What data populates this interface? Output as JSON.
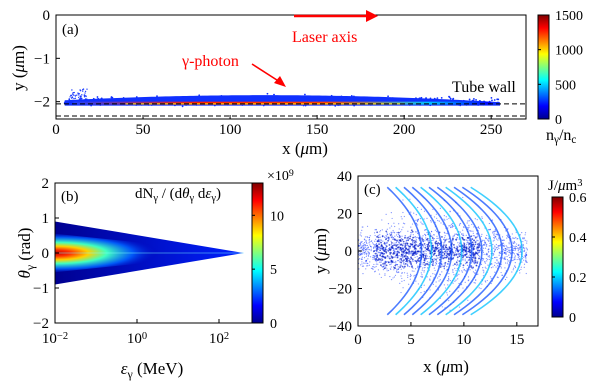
{
  "chart_data": [
    {
      "type": "heatmap",
      "panel_label": "(a)",
      "xlabel": "x (μm)",
      "ylabel": "y (μm)",
      "xlim": [
        0,
        270
      ],
      "ylim": [
        -2.4,
        0
      ],
      "xticks": [
        0,
        50,
        100,
        150,
        200,
        250
      ],
      "yticks": [
        0,
        -1,
        -2
      ],
      "colorbar": {
        "ticks": [
          0,
          500,
          1000,
          1500
        ],
        "max": 1500,
        "label": "nγ/nc"
      },
      "annotations": {
        "laser": "Laser axis",
        "photon": "γ-photon",
        "wall": "Tube wall"
      },
      "tube_wall_y": [
        -2.05,
        -2.33
      ],
      "band": {
        "x_start": 5,
        "x_end": 255,
        "y_center": -2.05,
        "peak_x": 120
      }
    },
    {
      "type": "heatmap",
      "panel_label": "(b)",
      "xlabel": "εγ (MeV)",
      "ylabel": "θγ (rad)",
      "xscale": "log",
      "xlim": [
        0.01,
        1000
      ],
      "ylim": [
        -2,
        2
      ],
      "xticks": [
        0.01,
        1,
        100
      ],
      "xticklabels": [
        "10",
        "10",
        "10"
      ],
      "xtickexps": [
        "-2",
        "0",
        "2"
      ],
      "yticks": [
        2,
        1,
        0,
        -1,
        -2
      ],
      "title": "dNγ / (dθγ dεγ)",
      "colorbar": {
        "ticks": [
          0,
          5,
          10
        ],
        "max": 13,
        "multiplier": "×10",
        "multiplier_exp": "9"
      },
      "cone": {
        "x_start": 0.01,
        "x_end": 400,
        "half_angle_start": 0.9
      }
    },
    {
      "type": "heatmap",
      "panel_label": "(c)",
      "xlabel": "x (μm)",
      "ylabel": "y (μm)",
      "xlim": [
        0,
        17
      ],
      "ylim": [
        -40,
        40
      ],
      "xticks": [
        0,
        5,
        10,
        15
      ],
      "yticks": [
        40,
        20,
        0,
        -20,
        -40
      ],
      "colorbar": {
        "ticks": [
          0,
          0.2,
          0.4,
          0.6
        ],
        "max": 0.6,
        "label": "J/μm",
        "label_exp": "3"
      }
    }
  ]
}
